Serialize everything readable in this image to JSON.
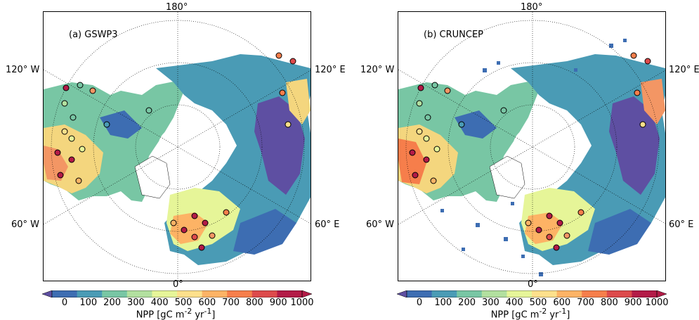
{
  "panels": [
    {
      "id": "a",
      "label": "(a) GSWP3"
    },
    {
      "id": "b",
      "label": "(b) CRUNCEP"
    }
  ],
  "longitude_labels": {
    "top": "180°",
    "bottom": "0°",
    "upper_left": "120° W",
    "lower_left": "60° W",
    "upper_right": "120° E",
    "lower_right": "60° E"
  },
  "colorbar": {
    "ticks": [
      "0",
      "100",
      "200",
      "300",
      "400",
      "500",
      "600",
      "700",
      "800",
      "900",
      "1000"
    ],
    "label_prefix": "NPP [gC m",
    "label_sup1": "-2",
    "label_mid": " yr",
    "label_sup2": "-1",
    "label_suffix": "]",
    "colors": [
      "#5e4fa2",
      "#3d6db2",
      "#4a9bb5",
      "#78c6a4",
      "#b2e09f",
      "#e6f598",
      "#fee08b",
      "#fdb365",
      "#f67e4b",
      "#dd4a4b",
      "#b31b47"
    ]
  }
}
